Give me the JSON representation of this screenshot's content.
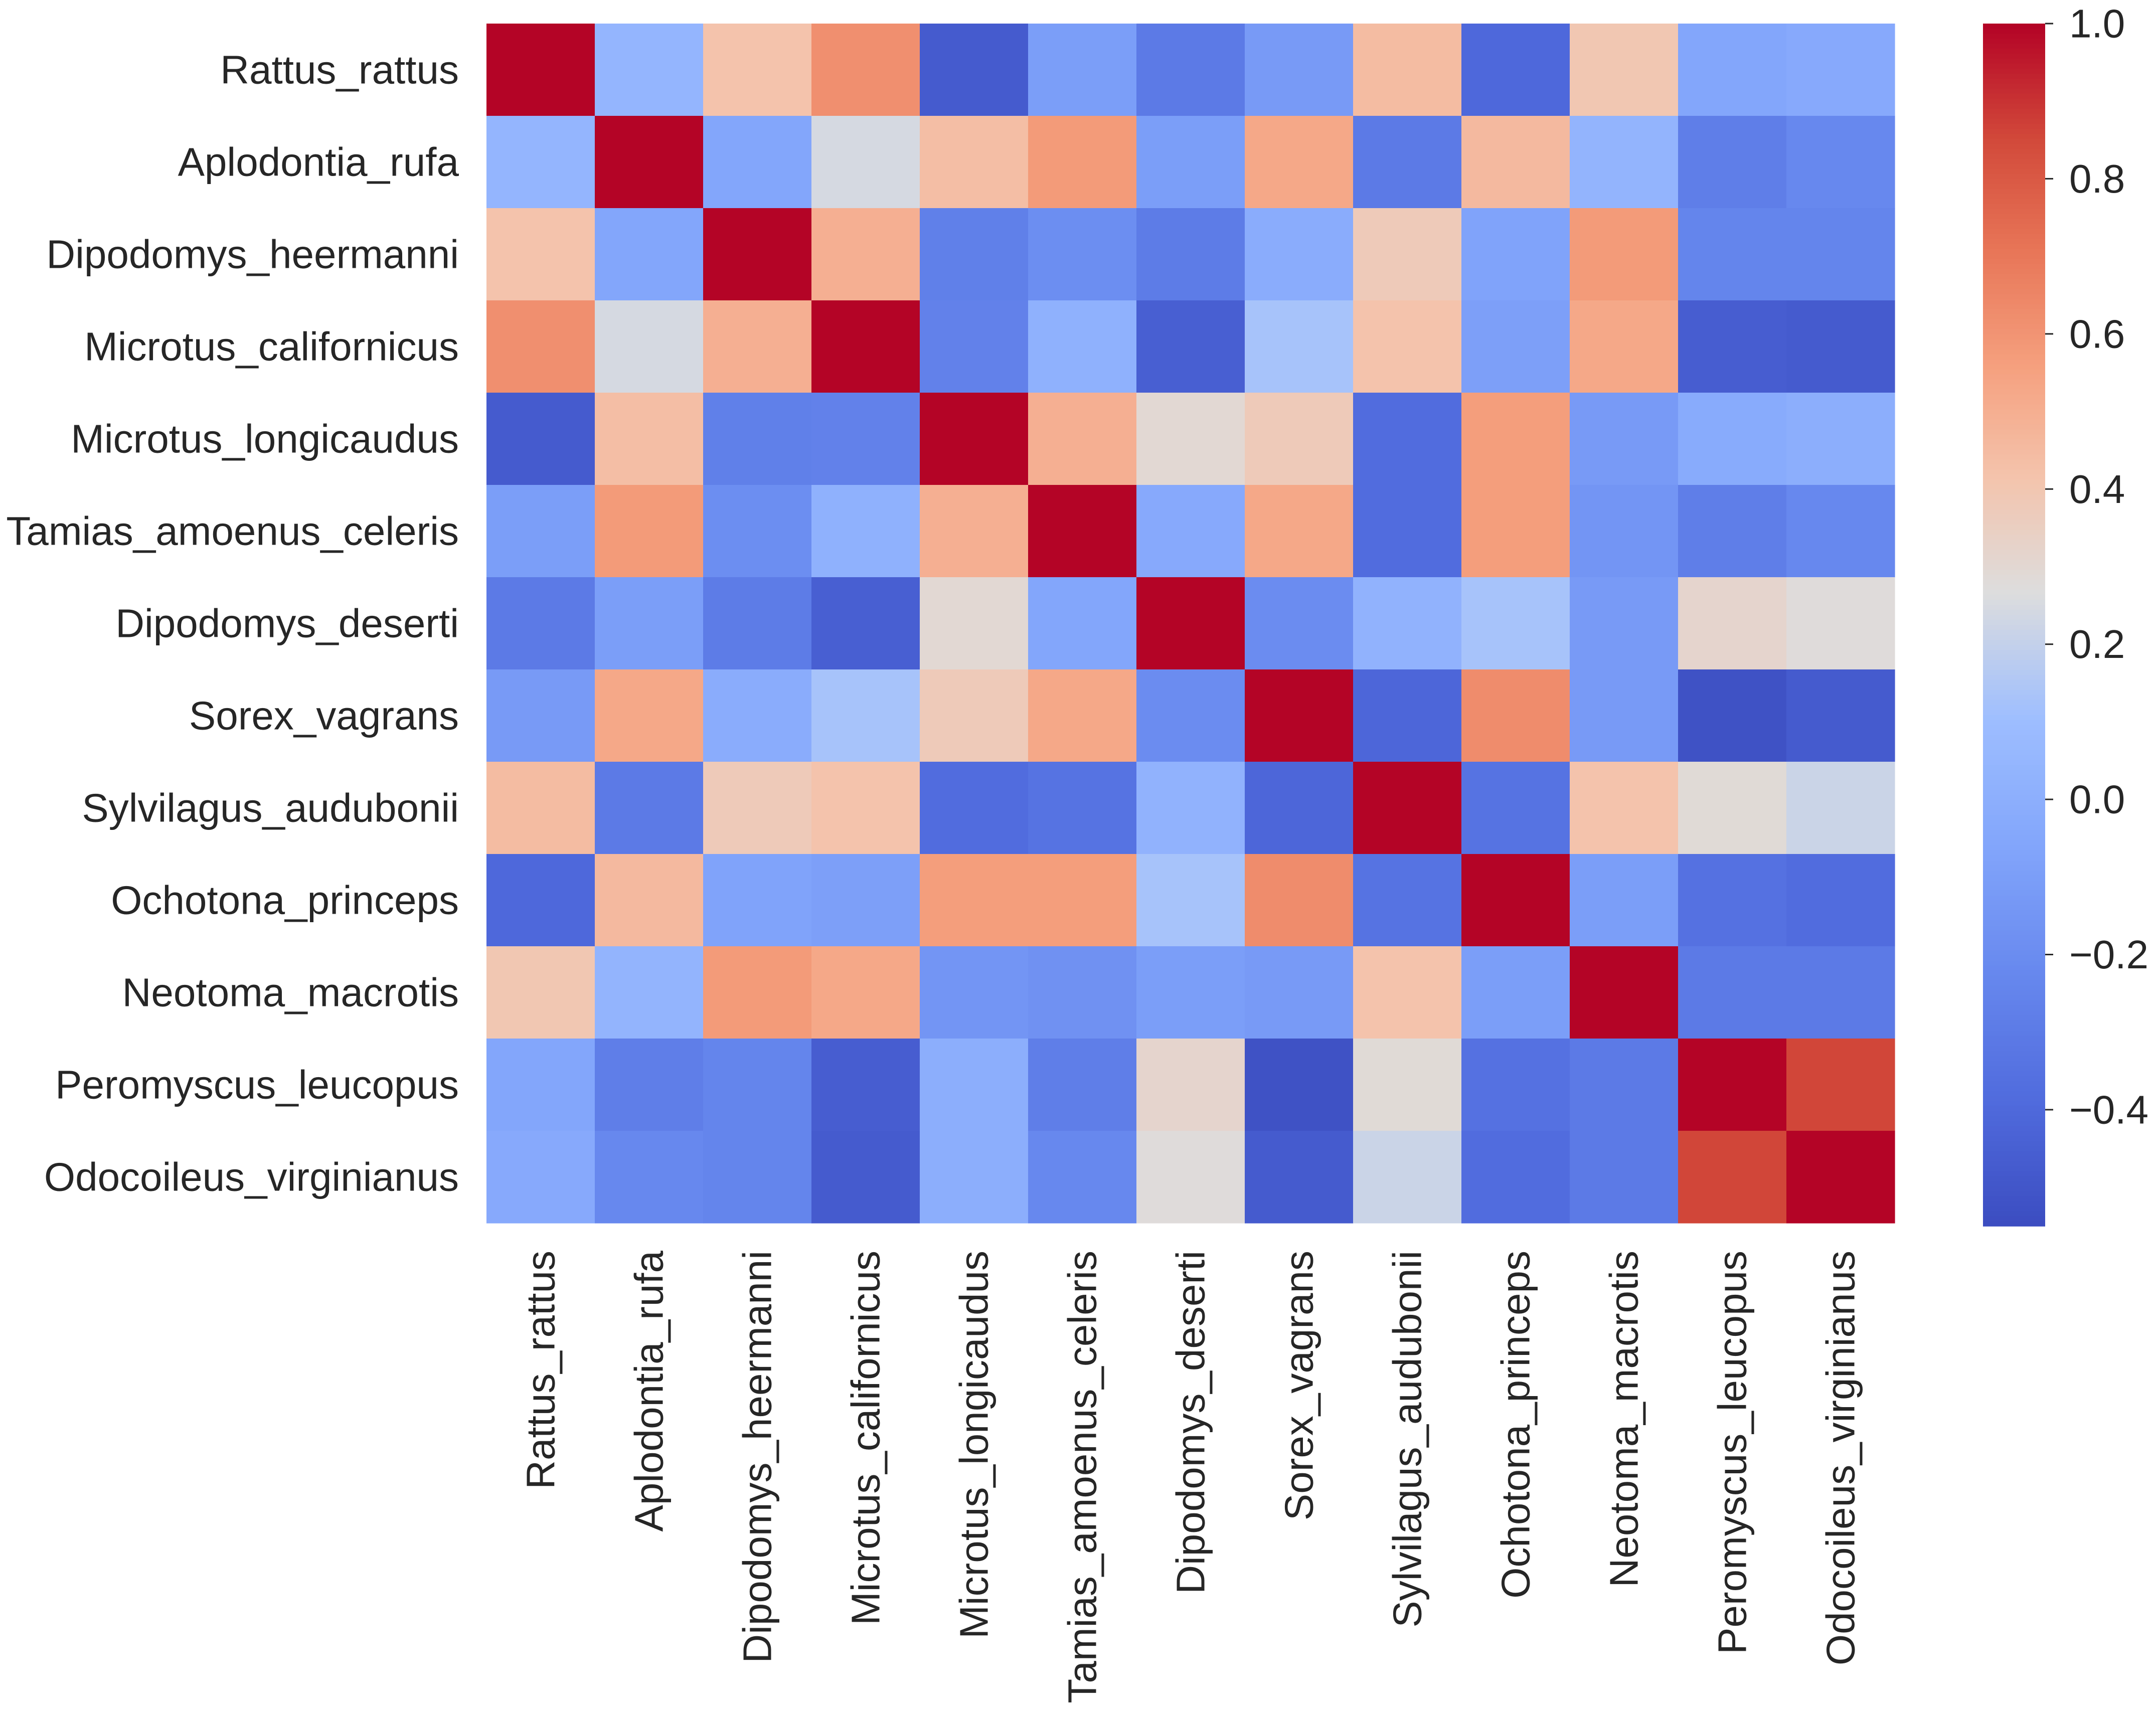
{
  "chart_data": {
    "type": "heatmap",
    "title": "",
    "xlabel": "",
    "ylabel": "",
    "rows": [
      "Rattus_rattus",
      "Aplodontia_rufa",
      "Dipodomys_heermanni",
      "Microtus_californicus",
      "Microtus_longicaudus",
      "Tamias_amoenus_celeris",
      "Dipodomys_deserti",
      "Sorex_vagrans",
      "Sylvilagus_audubonii",
      "Ochotona_princeps",
      "Neotoma_macrotis",
      "Peromyscus_leucopus",
      "Odocoileus_virginianus"
    ],
    "columns": [
      "Rattus_rattus",
      "Aplodontia_rufa",
      "Dipodomys_heermanni",
      "Microtus_californicus",
      "Microtus_longicaudus",
      "Tamias_amoenus_celeris",
      "Dipodomys_deserti",
      "Sorex_vagrans",
      "Sylvilagus_audubonii",
      "Ochotona_princeps",
      "Neotoma_macrotis",
      "Peromyscus_leucopus",
      "Odocoileus_virginianus"
    ],
    "values": [
      [
        1.0,
        0.05,
        0.42,
        0.62,
        -0.47,
        -0.1,
        -0.3,
        -0.12,
        0.45,
        -0.4,
        0.4,
        -0.05,
        -0.03
      ],
      [
        0.05,
        1.0,
        -0.05,
        0.25,
        0.44,
        0.58,
        -0.1,
        0.53,
        -0.3,
        0.46,
        0.04,
        -0.28,
        -0.22
      ],
      [
        0.42,
        -0.05,
        1.0,
        0.5,
        -0.27,
        -0.19,
        -0.29,
        -0.01,
        0.38,
        -0.07,
        0.58,
        -0.24,
        -0.24
      ],
      [
        0.62,
        0.25,
        0.5,
        1.0,
        -0.26,
        0.02,
        -0.45,
        0.13,
        0.42,
        -0.09,
        0.53,
        -0.46,
        -0.47
      ],
      [
        -0.47,
        0.44,
        -0.27,
        -0.26,
        1.0,
        0.5,
        0.3,
        0.38,
        -0.38,
        0.57,
        -0.12,
        -0.02,
        0.0
      ],
      [
        -0.1,
        0.58,
        -0.19,
        0.02,
        0.5,
        1.0,
        -0.03,
        0.53,
        -0.38,
        0.57,
        -0.15,
        -0.28,
        -0.22
      ],
      [
        -0.3,
        -0.1,
        -0.29,
        -0.45,
        0.3,
        -0.05,
        1.0,
        -0.2,
        0.03,
        0.13,
        -0.12,
        0.32,
        0.28
      ],
      [
        -0.12,
        0.53,
        -0.01,
        0.13,
        0.38,
        0.53,
        -0.2,
        1.0,
        -0.41,
        0.63,
        -0.12,
        -0.52,
        -0.47
      ],
      [
        0.45,
        -0.3,
        0.38,
        0.42,
        -0.38,
        -0.34,
        0.03,
        -0.41,
        1.0,
        -0.34,
        0.42,
        0.29,
        0.22
      ],
      [
        -0.4,
        0.46,
        -0.07,
        -0.09,
        0.57,
        0.57,
        0.13,
        0.63,
        -0.34,
        1.0,
        -0.1,
        -0.35,
        -0.38
      ],
      [
        0.4,
        0.04,
        0.58,
        0.53,
        -0.15,
        -0.17,
        -0.1,
        -0.12,
        0.42,
        -0.1,
        1.0,
        -0.3,
        -0.3
      ],
      [
        -0.05,
        -0.28,
        -0.24,
        -0.46,
        0.0,
        -0.28,
        0.32,
        -0.52,
        0.29,
        -0.35,
        -0.3,
        1.0,
        0.86
      ],
      [
        -0.03,
        -0.22,
        -0.24,
        -0.47,
        0.0,
        -0.22,
        0.28,
        -0.47,
        0.22,
        -0.38,
        -0.3,
        0.86,
        1.0
      ]
    ],
    "colormap": "coolwarm",
    "vmin": -0.55,
    "vmax": 1.0,
    "colorbar_ticks": [
      1.0,
      0.8,
      0.6,
      0.4,
      0.2,
      0.0,
      -0.2,
      -0.4
    ],
    "colorbar_tick_labels": [
      "1.0",
      "0.8",
      "0.6",
      "0.4",
      "0.2",
      "0.0",
      "−0.2",
      "−0.4"
    ],
    "colorbar_position": "right",
    "grid": false
  }
}
